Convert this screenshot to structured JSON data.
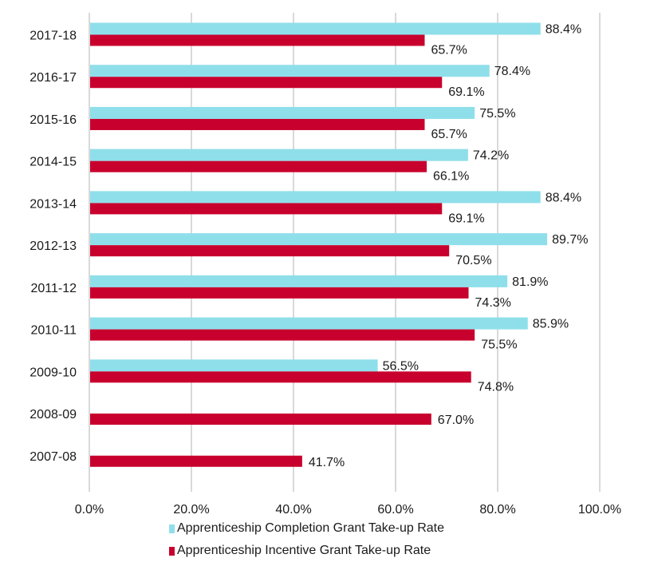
{
  "chart_data": {
    "type": "bar",
    "orientation": "horizontal",
    "title": "",
    "xlabel": "",
    "ylabel": "",
    "xlim": [
      0,
      100
    ],
    "x_ticks": [
      0,
      20,
      40,
      60,
      80,
      100
    ],
    "x_tick_labels": [
      "0.0%",
      "20.0%",
      "40.0%",
      "60.0%",
      "80.0%",
      "100.0%"
    ],
    "grid": "vertical",
    "legend_position": "bottom",
    "categories": [
      "2017-18",
      "2016-17",
      "2015-16",
      "2014-15",
      "2013-14",
      "2012-13",
      "2011-12",
      "2010-11",
      "2009-10",
      "2008-09",
      "2007-08"
    ],
    "series": [
      {
        "name": "Apprenticeship Completion Grant Take-up Rate",
        "color": "#8fdfea",
        "values": [
          88.4,
          78.4,
          75.5,
          74.2,
          88.4,
          89.7,
          81.9,
          85.9,
          56.5,
          null,
          null
        ],
        "labels": [
          "88.4%",
          "78.4%",
          "75.5%",
          "74.2%",
          "88.4%",
          "89.7%",
          "81.9%",
          "85.9%",
          "56.5%",
          null,
          null
        ]
      },
      {
        "name": "Apprenticeship Incentive Grant Take-up Rate",
        "color": "#c8002d",
        "values": [
          65.7,
          69.1,
          65.7,
          66.1,
          69.1,
          70.5,
          74.3,
          75.5,
          74.8,
          67.0,
          41.7
        ],
        "labels": [
          "65.7%",
          "69.1%",
          "65.7%",
          "66.1%",
          "69.1%",
          "70.5%",
          "74.3%",
          "75.5%",
          "74.8%",
          "67.0%",
          "41.7%"
        ]
      }
    ]
  }
}
